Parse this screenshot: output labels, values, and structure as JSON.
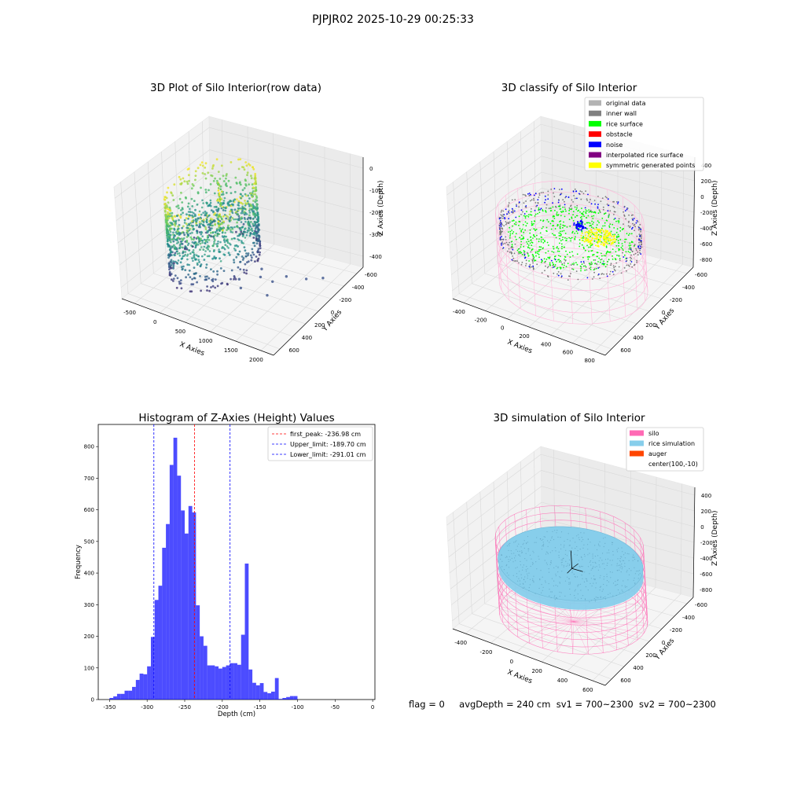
{
  "page": {
    "suptitle": "PJPJR02 2025-10-29 00:25:33",
    "footer": {
      "flag": "flag = 0",
      "avg_depth": "avgDepth = 240 cm",
      "sv1": "sv1 = 700~2300",
      "sv2": "sv2 = 700~2300"
    }
  },
  "colors": {
    "hist_bar": "#0000ff",
    "first_peak": "#ff0000",
    "limits": "#0000ff",
    "pane_fill": "#f2f2f2",
    "grid": "#d9d9d9",
    "silo_wire": "#ff69b4",
    "rice_sim": "#87ceeb",
    "auger": "#ff4500"
  },
  "chart_data": [
    {
      "type": "scatter",
      "projection": "3d",
      "title": "3D Plot of Silo Interior(row data)",
      "xlabel": "X Axies",
      "ylabel": "Y Axies",
      "zlabel": "Z Axies (Depth)",
      "xticks": [
        "-500",
        "0",
        "500",
        "1000",
        "1500",
        "2000"
      ],
      "yticks": [
        "-600",
        "-400",
        "-200",
        "0",
        "200",
        "400",
        "600"
      ],
      "zticks": [
        "-400",
        "-300",
        "-200",
        "-100",
        "0"
      ],
      "xlim": [
        -600,
        2100
      ],
      "ylim": [
        -650,
        650
      ],
      "zlim": [
        -450,
        0
      ],
      "colormap": "viridis",
      "grid": true
    },
    {
      "type": "scatter",
      "projection": "3d",
      "title": "3D classify of Silo Interior",
      "xlabel": "X Axies",
      "ylabel": "Y Axies",
      "zlabel": "Z Axies (Depth)",
      "xticks": [
        "-400",
        "-200",
        "0",
        "200",
        "400",
        "600",
        "800"
      ],
      "yticks": [
        "-600",
        "-400",
        "-200",
        "0",
        "200",
        "400",
        "600"
      ],
      "zticks": [
        "-800",
        "-600",
        "-400",
        "-200",
        "0",
        "200",
        "400"
      ],
      "xlim": [
        -500,
        850
      ],
      "ylim": [
        -650,
        650
      ],
      "zlim": [
        -850,
        450
      ],
      "legend_position": "top-right",
      "legend": [
        {
          "label": "original data",
          "color": "#b3b3b3"
        },
        {
          "label": "inner wall",
          "color": "#808080"
        },
        {
          "label": "rice surface",
          "color": "#00ff00"
        },
        {
          "label": "obstacle",
          "color": "#ff0000"
        },
        {
          "label": "noise",
          "color": "#0000ff"
        },
        {
          "label": "interpolated rice surface",
          "color": "#800080"
        },
        {
          "label": "symmetric generated points",
          "color": "#ffff00"
        }
      ],
      "grid": true
    },
    {
      "type": "bar",
      "title": "Histogram of Z-Axies (Height) Values",
      "xlabel": "Depth (cm)",
      "ylabel": "Frequency",
      "xlim": [
        -365,
        3
      ],
      "ylim": [
        0,
        870
      ],
      "xticks": [
        -350,
        -300,
        -250,
        -200,
        -150,
        -100,
        -50,
        0
      ],
      "yticks": [
        0,
        100,
        200,
        300,
        400,
        500,
        600,
        700,
        800
      ],
      "bin_start": -350,
      "bin_width": 5,
      "values": [
        5,
        10,
        18,
        18,
        28,
        28,
        40,
        62,
        82,
        80,
        105,
        198,
        315,
        360,
        480,
        555,
        742,
        828,
        708,
        598,
        525,
        612,
        592,
        298,
        200,
        170,
        108,
        108,
        105,
        98,
        103,
        108,
        115,
        115,
        110,
        205,
        430,
        95,
        53,
        45,
        52,
        24,
        20,
        25,
        68,
        2,
        5,
        8,
        11,
        11
      ],
      "lines": [
        {
          "label": "first_peak: -236.98 cm",
          "x": -236.98,
          "color": "#ff0000"
        },
        {
          "label": "Upper_limit: -189.70 cm",
          "x": -189.7,
          "color": "#0000ff"
        },
        {
          "label": "Lower_limit: -291.01 cm",
          "x": -291.01,
          "color": "#0000ff"
        }
      ],
      "legend_position": "top-right",
      "grid": false
    },
    {
      "type": "scatter",
      "projection": "3d",
      "title": "3D simulation of Silo Interior",
      "xlabel": "X Axies",
      "ylabel": "Y Axies",
      "zlabel": "Z Axies (Depth)",
      "xticks": [
        "-400",
        "-200",
        "0",
        "200",
        "400",
        "600"
      ],
      "yticks": [
        "-600",
        "-400",
        "-200",
        "0",
        "200",
        "400",
        "600"
      ],
      "zticks": [
        "-800",
        "-600",
        "-400",
        "-200",
        "0",
        "200",
        "400"
      ],
      "xlim": [
        -500,
        750
      ],
      "ylim": [
        -650,
        650
      ],
      "zlim": [
        -850,
        450
      ],
      "legend_position": "top-right",
      "legend": [
        {
          "label": "silo",
          "color": "#ff69b4"
        },
        {
          "label": "rice simulation",
          "color": "#87ceeb"
        },
        {
          "label": "auger",
          "color": "#ff4500"
        },
        {
          "label": "center(100,-10)",
          "color": ""
        }
      ],
      "grid": true
    }
  ]
}
